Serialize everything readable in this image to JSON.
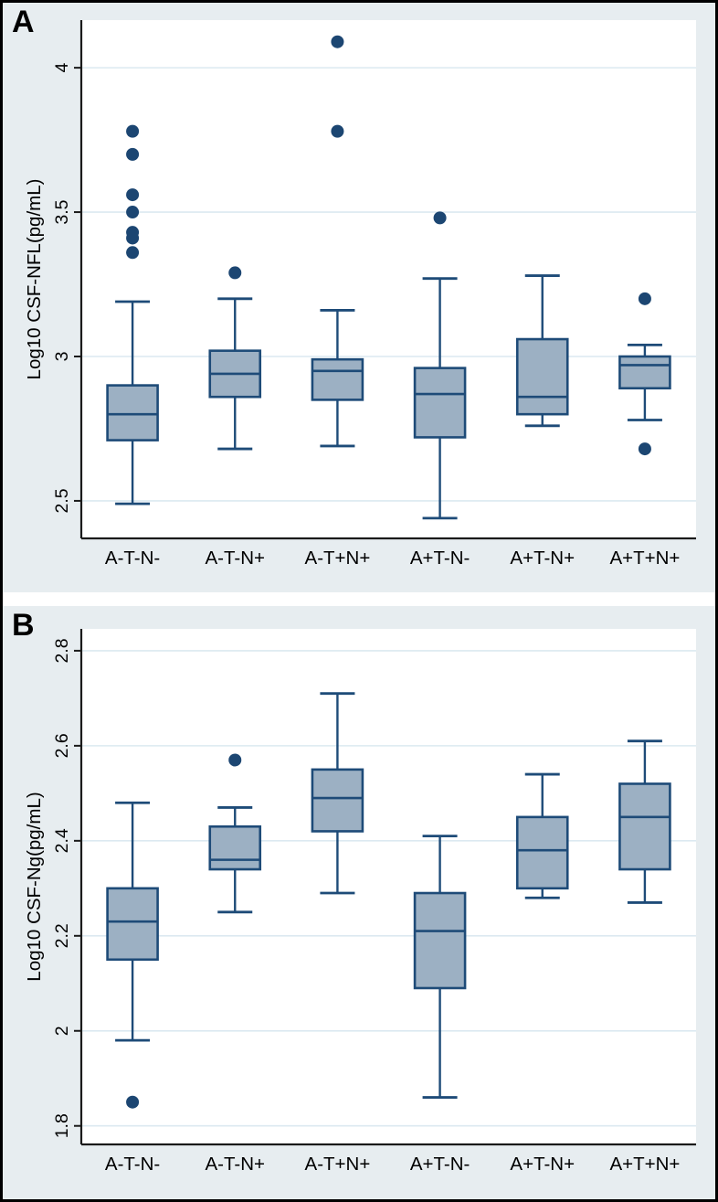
{
  "figure_title": "",
  "chart_data": [
    {
      "type": "box",
      "panel_label": "A",
      "ylabel": "Log10 CSF-NFL(pg/mL)",
      "xlabel": "",
      "yticks": [
        2.5,
        3,
        3.5,
        4
      ],
      "ytick_labels": [
        "2.5",
        "3",
        "3.5",
        "4"
      ],
      "ylim": [
        2.37,
        4.165
      ],
      "grid": true,
      "categories": [
        "A-T-N-",
        "A-T-N+",
        "A-T+N+",
        "A+T-N-",
        "A+T-N+",
        "A+T+N+"
      ],
      "boxes": [
        {
          "whislo": 2.49,
          "q1": 2.71,
          "med": 2.8,
          "q3": 2.9,
          "whishi": 3.19,
          "outliers": [
            3.36,
            3.41,
            3.43,
            3.5,
            3.56,
            3.7,
            3.78
          ]
        },
        {
          "whislo": 2.68,
          "q1": 2.86,
          "med": 2.94,
          "q3": 3.02,
          "whishi": 3.2,
          "outliers": [
            3.29
          ]
        },
        {
          "whislo": 2.69,
          "q1": 2.85,
          "med": 2.95,
          "q3": 2.99,
          "whishi": 3.16,
          "outliers": [
            3.78,
            4.09
          ]
        },
        {
          "whislo": 2.44,
          "q1": 2.72,
          "med": 2.87,
          "q3": 2.96,
          "whishi": 3.27,
          "outliers": [
            3.48
          ]
        },
        {
          "whislo": 2.76,
          "q1": 2.8,
          "med": 2.86,
          "q3": 3.06,
          "whishi": 3.28,
          "outliers": []
        },
        {
          "whislo": 2.78,
          "q1": 2.89,
          "med": 2.97,
          "q3": 3.0,
          "whishi": 3.04,
          "outliers": [
            2.68,
            3.2
          ]
        }
      ]
    },
    {
      "type": "box",
      "panel_label": "B",
      "ylabel": "Log10 CSF-Ng(pg/mL)",
      "xlabel": "",
      "yticks": [
        1.8,
        2,
        2.2,
        2.4,
        2.6,
        2.8
      ],
      "ytick_labels": [
        "1.8",
        "2",
        "2.2",
        "2.4",
        "2.6",
        "2.8"
      ],
      "ylim": [
        1.761,
        2.846
      ],
      "grid": true,
      "categories": [
        "A-T-N-",
        "A-T-N+",
        "A-T+N+",
        "A+T-N-",
        "A+T-N+",
        "A+T+N+"
      ],
      "boxes": [
        {
          "whislo": 1.98,
          "q1": 2.15,
          "med": 2.23,
          "q3": 2.3,
          "whishi": 2.48,
          "outliers": [
            1.85
          ]
        },
        {
          "whislo": 2.25,
          "q1": 2.34,
          "med": 2.36,
          "q3": 2.43,
          "whishi": 2.47,
          "outliers": [
            2.57
          ]
        },
        {
          "whislo": 2.29,
          "q1": 2.42,
          "med": 2.49,
          "q3": 2.55,
          "whishi": 2.71,
          "outliers": []
        },
        {
          "whislo": 1.86,
          "q1": 2.09,
          "med": 2.21,
          "q3": 2.29,
          "whishi": 2.41,
          "outliers": []
        },
        {
          "whislo": 2.28,
          "q1": 2.3,
          "med": 2.38,
          "q3": 2.45,
          "whishi": 2.54,
          "outliers": []
        },
        {
          "whislo": 2.27,
          "q1": 2.34,
          "med": 2.45,
          "q3": 2.52,
          "whishi": 2.61,
          "outliers": []
        }
      ]
    }
  ],
  "colors": {
    "panel_background": "#e7edf0",
    "plot_background": "#ffffff",
    "gridline": "#dce9f1",
    "axis": "#1a1a1a",
    "box_fill": "#9cb0c3",
    "box_stroke": "#1e4b78",
    "outlier": "#1c4672",
    "text": "#000000"
  }
}
